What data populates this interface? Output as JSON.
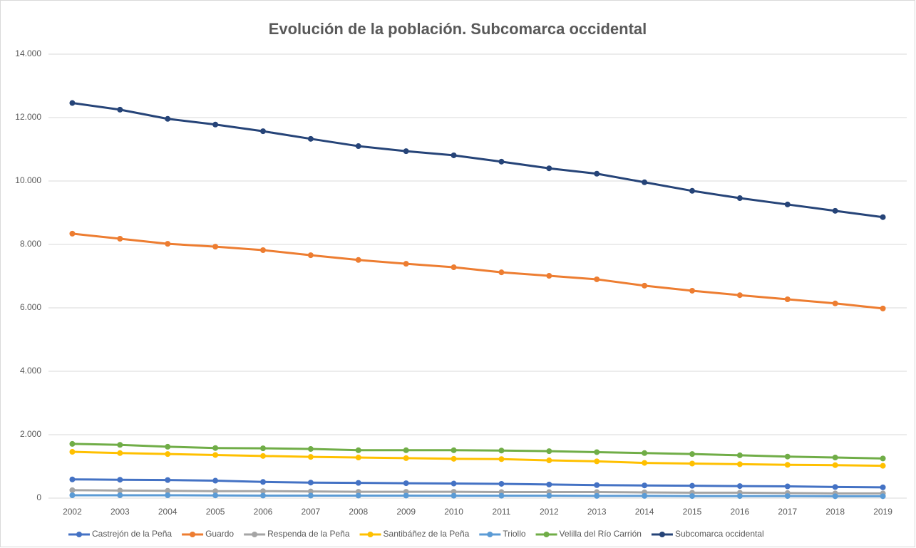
{
  "chart_data": {
    "type": "line",
    "title": "Evolución de la población. Subcomarca occidental",
    "categories": [
      "2002",
      "2003",
      "2004",
      "2005",
      "2006",
      "2007",
      "2008",
      "2009",
      "2010",
      "2011",
      "2012",
      "2013",
      "2014",
      "2015",
      "2016",
      "2017",
      "2018",
      "2019"
    ],
    "series": [
      {
        "name": "Castrejón de la Peña",
        "color": "#4472c4",
        "values": [
          590,
          580,
          570,
          550,
          510,
          490,
          480,
          470,
          460,
          450,
          430,
          410,
          400,
          390,
          380,
          370,
          350,
          340
        ]
      },
      {
        "name": "Guardo",
        "color": "#ed7d31",
        "values": [
          8340,
          8180,
          8020,
          7930,
          7820,
          7660,
          7510,
          7390,
          7280,
          7120,
          7010,
          6900,
          6700,
          6540,
          6400,
          6270,
          6140,
          5980
        ]
      },
      {
        "name": "Respenda de la Peña",
        "color": "#a5a5a5",
        "values": [
          250,
          240,
          230,
          220,
          220,
          210,
          200,
          200,
          200,
          190,
          190,
          190,
          180,
          170,
          170,
          160,
          150,
          150
        ]
      },
      {
        "name": "Santibáñez de la Peña",
        "color": "#ffc000",
        "values": [
          1460,
          1420,
          1390,
          1360,
          1330,
          1300,
          1280,
          1260,
          1240,
          1230,
          1190,
          1160,
          1110,
          1090,
          1070,
          1050,
          1040,
          1020
        ]
      },
      {
        "name": "Triollo",
        "color": "#5b9bd5",
        "values": [
          90,
          90,
          90,
          85,
          80,
          80,
          80,
          80,
          75,
          75,
          75,
          70,
          70,
          65,
          65,
          65,
          60,
          60
        ]
      },
      {
        "name": "Velilla del Río Carrión",
        "color": "#70ad47",
        "values": [
          1710,
          1680,
          1620,
          1580,
          1570,
          1550,
          1510,
          1510,
          1510,
          1500,
          1480,
          1450,
          1420,
          1390,
          1350,
          1310,
          1280,
          1250
        ]
      },
      {
        "name": "Subcomarca occidental",
        "color": "#264478",
        "values": [
          12460,
          12250,
          11960,
          11780,
          11570,
          11330,
          11100,
          10940,
          10810,
          10610,
          10400,
          10230,
          9960,
          9690,
          9460,
          9260,
          9060,
          8860
        ]
      }
    ],
    "ylim": [
      0,
      14000
    ],
    "yticks": [
      0,
      {
        "value": 2000,
        "label": "2.000"
      },
      {
        "value": 4000,
        "label": "4.000"
      },
      {
        "value": 6000,
        "label": "6.000"
      },
      {
        "value": 8000,
        "label": "8.000"
      },
      {
        "value": 10000,
        "label": "10.000"
      },
      {
        "value": 12000,
        "label": "12.000"
      },
      {
        "value": 14000,
        "label": "14.000"
      }
    ],
    "grid": true,
    "legend": "bottom"
  }
}
